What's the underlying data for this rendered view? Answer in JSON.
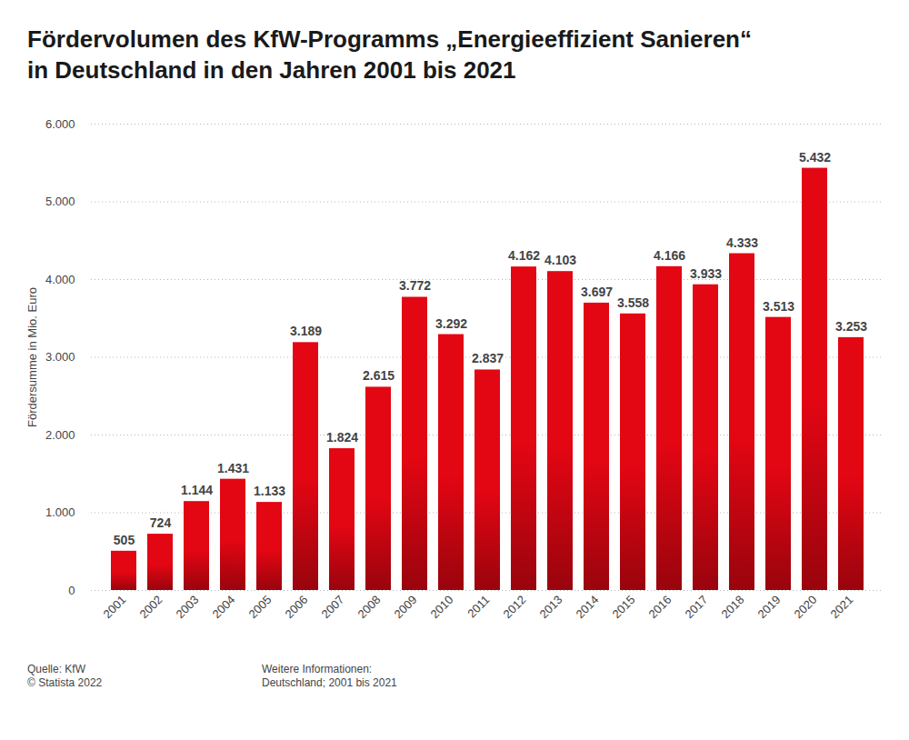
{
  "chart_data": {
    "type": "bar",
    "title": "Fördervolumen des KfW-Programms „Energieeffizient Sanieren“\nin Deutschland in den Jahren 2001 bis 2021",
    "y_label": "Fördersumme in Mio. Euro",
    "categories": [
      "2001",
      "2002",
      "2003",
      "2004",
      "2005",
      "2006",
      "2007",
      "2008",
      "2009",
      "2010",
      "2011",
      "2012",
      "2013",
      "2014",
      "2015",
      "2016",
      "2017",
      "2018",
      "2019",
      "2020",
      "2021"
    ],
    "values": [
      505,
      724,
      1144,
      1431,
      1133,
      3189,
      1824,
      2615,
      3772,
      3292,
      2837,
      4162,
      4103,
      3697,
      3558,
      4166,
      3933,
      4333,
      3513,
      5432,
      3253
    ],
    "value_labels": [
      "505",
      "724",
      "1.144",
      "1.431",
      "1.133",
      "3.189",
      "1.824",
      "2.615",
      "3.772",
      "3.292",
      "2.837",
      "4.162",
      "4.103",
      "3.697",
      "3.558",
      "4.166",
      "3.933",
      "4.333",
      "3.513",
      "5.432",
      "3.253"
    ],
    "color": "#e30613",
    "ylim": [
      0,
      6000
    ],
    "yticks": [
      0,
      {
        "value": 1000,
        "label": "1.000"
      },
      {
        "value": 2000,
        "label": "2.000"
      },
      {
        "value": 3000,
        "label": "3.000"
      },
      {
        "value": 4000,
        "label": "4.000"
      },
      {
        "value": 5000,
        "label": "5.000"
      },
      {
        "value": 6000,
        "label": "6.000"
      }
    ],
    "grid": true,
    "data_labels": true,
    "source": "Quelle: KfW\n© Statista 2022",
    "note": "Weitere Informationen:\nDeutschland; 2001 bis 2021"
  }
}
